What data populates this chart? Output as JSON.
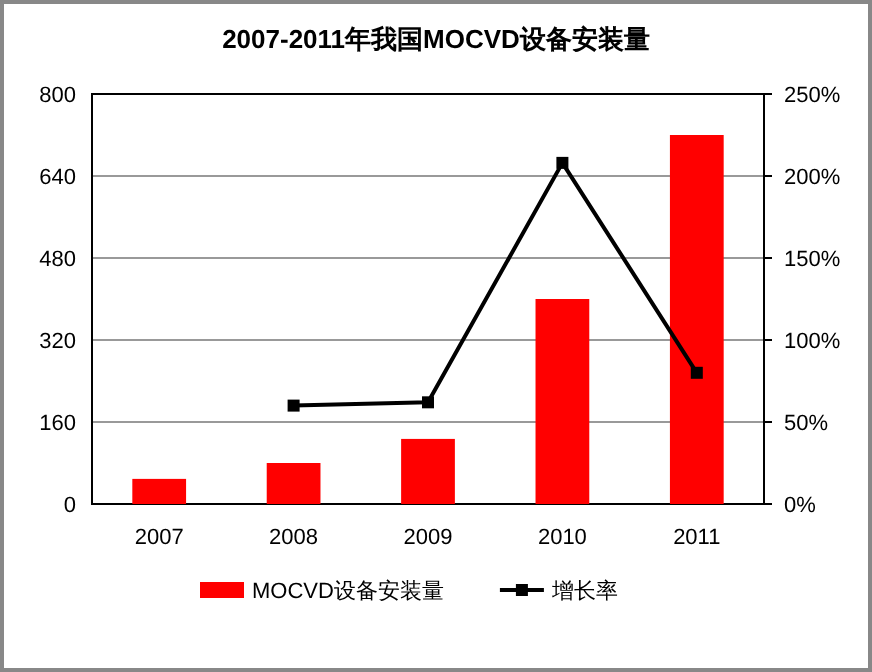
{
  "chart_data": {
    "type": "bar",
    "title": "2007-2011年我国MOCVD设备安装量",
    "categories": [
      "2007",
      "2008",
      "2009",
      "2010",
      "2011"
    ],
    "series": [
      {
        "name": "MOCVD设备安装量",
        "color": "#ff0000",
        "values": [
          49,
          80,
          127,
          400,
          720
        ]
      },
      {
        "name": "增长率",
        "type": "line",
        "axis": "y2",
        "color": "#000000",
        "marker": "square",
        "values": [
          null,
          60,
          62,
          208,
          80
        ]
      }
    ],
    "ylim": [
      0,
      800
    ],
    "yticks": [
      0,
      160,
      320,
      480,
      640,
      800
    ],
    "y2lim": [
      0,
      250
    ],
    "y2ticks": [
      {
        "value": 0,
        "label": "0%"
      },
      {
        "value": 50,
        "label": "50%"
      },
      {
        "value": 100,
        "label": "100%"
      },
      {
        "value": 150,
        "label": "150%"
      },
      {
        "value": 200,
        "label": "200%"
      },
      {
        "value": 250,
        "label": "250%"
      }
    ],
    "grid": "y",
    "legend": "bottom"
  }
}
